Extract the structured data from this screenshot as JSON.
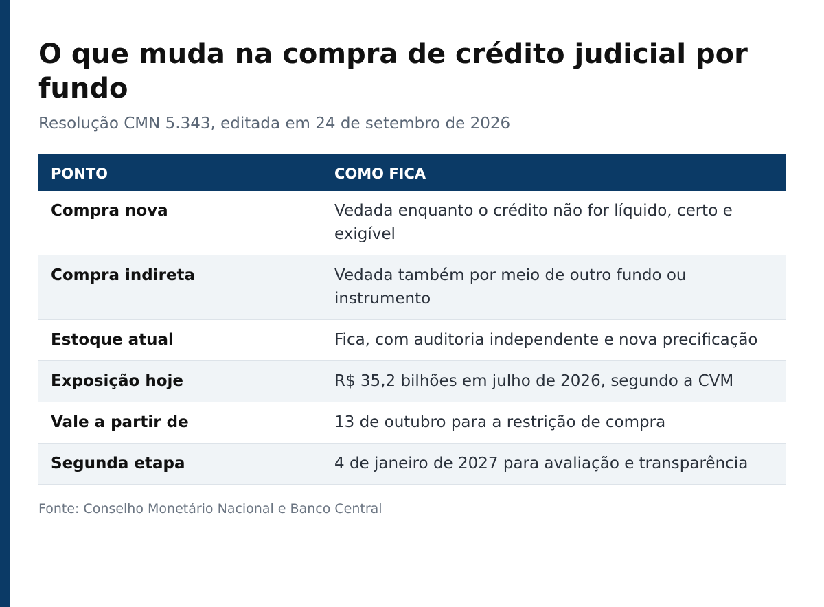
{
  "title": "O que muda na compra de crédito judicial por fundo",
  "subtitle": "Resolução CMN 5.343, editada em 24 de setembro de 2026",
  "table": {
    "headers": [
      "PONTO",
      "COMO FICA"
    ],
    "rows": [
      {
        "point": "Compra nova",
        "how": "Vedada enquanto o crédito não for líquido, certo e exigível"
      },
      {
        "point": "Compra indireta",
        "how": "Vedada também por meio de outro fundo ou instrumento"
      },
      {
        "point": "Estoque atual",
        "how": "Fica, com auditoria independente e nova precificação"
      },
      {
        "point": "Exposição hoje",
        "how": "R$ 35,2 bilhões em julho de 2026, segundo a CVM"
      },
      {
        "point": "Vale a partir de",
        "how": "13 de outubro para a restrição de compra"
      },
      {
        "point": "Segunda etapa",
        "how": "4 de janeiro de 2027 para avaliação e transparência"
      }
    ]
  },
  "source": "Fonte: Conselho Monetário Nacional e Banco Central",
  "colors": {
    "accent": "#0b3a66",
    "row_alt": "#f0f4f7"
  }
}
